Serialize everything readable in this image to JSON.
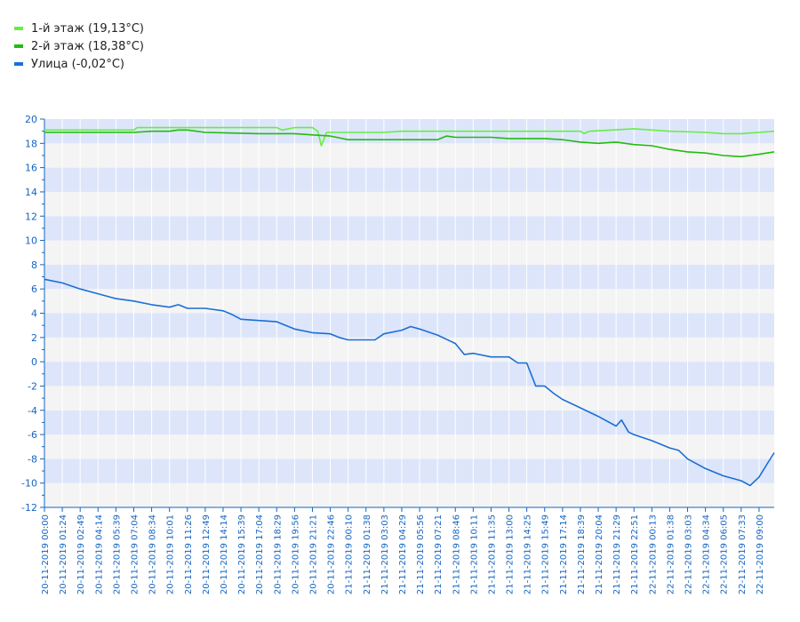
{
  "chart_data": {
    "type": "line",
    "title": "",
    "xlabel": "",
    "ylabel": "",
    "ylim": [
      -12,
      20
    ],
    "ytick_step": 2,
    "grid": true,
    "legend_position": "top-left",
    "x_tick_labels": [
      "20-11-2019 00:00",
      "20-11-2019 01:24",
      "20-11-2019 02:49",
      "20-11-2019 04:14",
      "20-11-2019 05:39",
      "20-11-2019 07:04",
      "20-11-2019 08:34",
      "20-11-2019 10:01",
      "20-11-2019 11:26",
      "20-11-2019 12:49",
      "20-11-2019 14:14",
      "20-11-2019 15:39",
      "20-11-2019 17:04",
      "20-11-2019 18:29",
      "20-11-2019 19:56",
      "20-11-2019 21:21",
      "20-11-2019 22:46",
      "21-11-2019 00:10",
      "21-11-2019 01:38",
      "21-11-2019 03:03",
      "21-11-2019 04:29",
      "21-11-2019 05:56",
      "21-11-2019 07:21",
      "21-11-2019 08:46",
      "21-11-2019 10:11",
      "21-11-2019 11:35",
      "21-11-2019 13:00",
      "21-11-2019 14:25",
      "21-11-2019 15:49",
      "21-11-2019 17:14",
      "21-11-2019 18:39",
      "21-11-2019 20:04",
      "21-11-2019 21:29",
      "21-11-2019 22:51",
      "22-11-2019 00:13",
      "22-11-2019 01:38",
      "22-11-2019 03:03",
      "22-11-2019 04:34",
      "22-11-2019 06:05",
      "22-11-2019 07:33",
      "22-11-2019 09:00"
    ],
    "series": [
      {
        "name": "1-й этаж (19,13°C)",
        "color": "#66ee44",
        "points": [
          [
            0,
            19.1
          ],
          [
            5,
            19.1
          ],
          [
            5.2,
            19.3
          ],
          [
            13,
            19.3
          ],
          [
            13.3,
            19.1
          ],
          [
            14,
            19.3
          ],
          [
            15,
            19.3
          ],
          [
            15.3,
            19.0
          ],
          [
            15.5,
            17.8
          ],
          [
            15.8,
            18.9
          ],
          [
            19,
            18.9
          ],
          [
            20,
            19.0
          ],
          [
            23,
            19.0
          ],
          [
            24,
            19.0
          ],
          [
            27,
            19.0
          ],
          [
            30,
            19.0
          ],
          [
            30.2,
            18.8
          ],
          [
            30.5,
            19.0
          ],
          [
            33,
            19.2
          ],
          [
            35,
            19.0
          ],
          [
            37,
            18.9
          ],
          [
            38,
            18.8
          ],
          [
            39,
            18.8
          ],
          [
            40,
            18.9
          ],
          [
            40.85,
            19.0
          ]
        ]
      },
      {
        "name": "2-й этаж (18,38°C)",
        "color": "#22bb11",
        "points": [
          [
            0,
            18.9
          ],
          [
            5,
            18.9
          ],
          [
            6,
            19.0
          ],
          [
            7,
            19.0
          ],
          [
            7.5,
            19.1
          ],
          [
            8,
            19.1
          ],
          [
            9,
            18.9
          ],
          [
            12,
            18.8
          ],
          [
            14,
            18.8
          ],
          [
            15,
            18.7
          ],
          [
            16,
            18.6
          ],
          [
            17,
            18.3
          ],
          [
            22,
            18.3
          ],
          [
            22.5,
            18.6
          ],
          [
            23,
            18.5
          ],
          [
            25,
            18.5
          ],
          [
            26,
            18.4
          ],
          [
            28,
            18.4
          ],
          [
            29,
            18.3
          ],
          [
            30,
            18.1
          ],
          [
            31,
            18.0
          ],
          [
            32,
            18.1
          ],
          [
            33,
            17.9
          ],
          [
            34,
            17.8
          ],
          [
            35,
            17.5
          ],
          [
            36,
            17.3
          ],
          [
            37,
            17.2
          ],
          [
            38,
            17.0
          ],
          [
            39,
            16.9
          ],
          [
            40,
            17.1
          ],
          [
            40.85,
            17.3
          ]
        ]
      },
      {
        "name": "Улица (-0,02°C)",
        "color": "#1a6fd6",
        "points": [
          [
            0,
            6.8
          ],
          [
            1,
            6.5
          ],
          [
            2,
            6.0
          ],
          [
            3,
            5.6
          ],
          [
            4,
            5.2
          ],
          [
            5,
            5.0
          ],
          [
            6,
            4.7
          ],
          [
            7,
            4.5
          ],
          [
            7.5,
            4.7
          ],
          [
            8,
            4.4
          ],
          [
            9,
            4.4
          ],
          [
            10,
            4.2
          ],
          [
            10.5,
            3.9
          ],
          [
            11,
            3.5
          ],
          [
            12,
            3.4
          ],
          [
            13,
            3.3
          ],
          [
            14,
            2.7
          ],
          [
            15,
            2.4
          ],
          [
            16,
            2.3
          ],
          [
            16.5,
            2.0
          ],
          [
            17,
            1.8
          ],
          [
            18,
            1.8
          ],
          [
            18.5,
            1.8
          ],
          [
            19,
            2.3
          ],
          [
            20,
            2.6
          ],
          [
            20.5,
            2.9
          ],
          [
            21,
            2.7
          ],
          [
            22,
            2.2
          ],
          [
            23,
            1.5
          ],
          [
            23.5,
            0.6
          ],
          [
            24,
            0.7
          ],
          [
            25,
            0.4
          ],
          [
            26,
            0.4
          ],
          [
            26.5,
            -0.1
          ],
          [
            27,
            -0.1
          ],
          [
            27.5,
            -2.0
          ],
          [
            28,
            -2.0
          ],
          [
            28.5,
            -2.6
          ],
          [
            29,
            -3.1
          ],
          [
            30,
            -3.8
          ],
          [
            31,
            -4.5
          ],
          [
            32,
            -5.3
          ],
          [
            32.3,
            -4.8
          ],
          [
            32.7,
            -5.8
          ],
          [
            33,
            -6.0
          ],
          [
            34,
            -6.5
          ],
          [
            35,
            -7.1
          ],
          [
            35.5,
            -7.3
          ],
          [
            36,
            -8.0
          ],
          [
            37,
            -8.8
          ],
          [
            38,
            -9.4
          ],
          [
            39,
            -9.8
          ],
          [
            39.5,
            -10.2
          ],
          [
            40,
            -9.5
          ],
          [
            40.5,
            -8.3
          ],
          [
            40.85,
            -7.5
          ]
        ]
      }
    ]
  }
}
